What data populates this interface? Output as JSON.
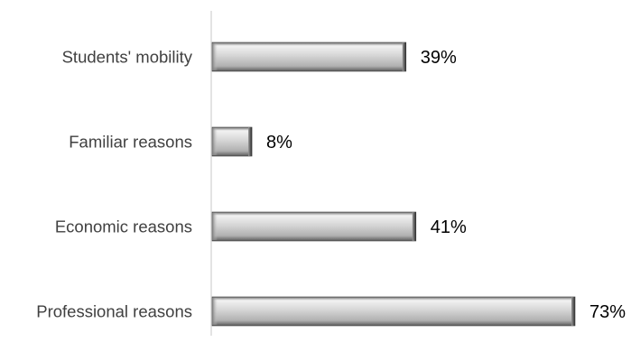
{
  "chart_data": {
    "type": "bar",
    "orientation": "horizontal",
    "categories": [
      "Students' mobility",
      "Familiar reasons",
      "Economic reasons",
      "Professional reasons"
    ],
    "values": [
      39,
      8,
      41,
      73
    ],
    "value_labels": [
      "39%",
      "8%",
      "41%",
      "73%"
    ],
    "unit": "%",
    "title": "",
    "xlabel": "",
    "ylabel": "",
    "xlim": [
      0,
      73
    ],
    "grid": false,
    "legend": "none",
    "bar_style": "beveled grey gradient",
    "colors": {
      "bar_light": "#f2f2f2",
      "bar_mid": "#c8c8c8",
      "bar_dark": "#6e6e6e",
      "bar_edge": "#3c3c3c",
      "axis": "#d0d0d0",
      "category_text": "#404040",
      "value_text": "#000000"
    }
  }
}
